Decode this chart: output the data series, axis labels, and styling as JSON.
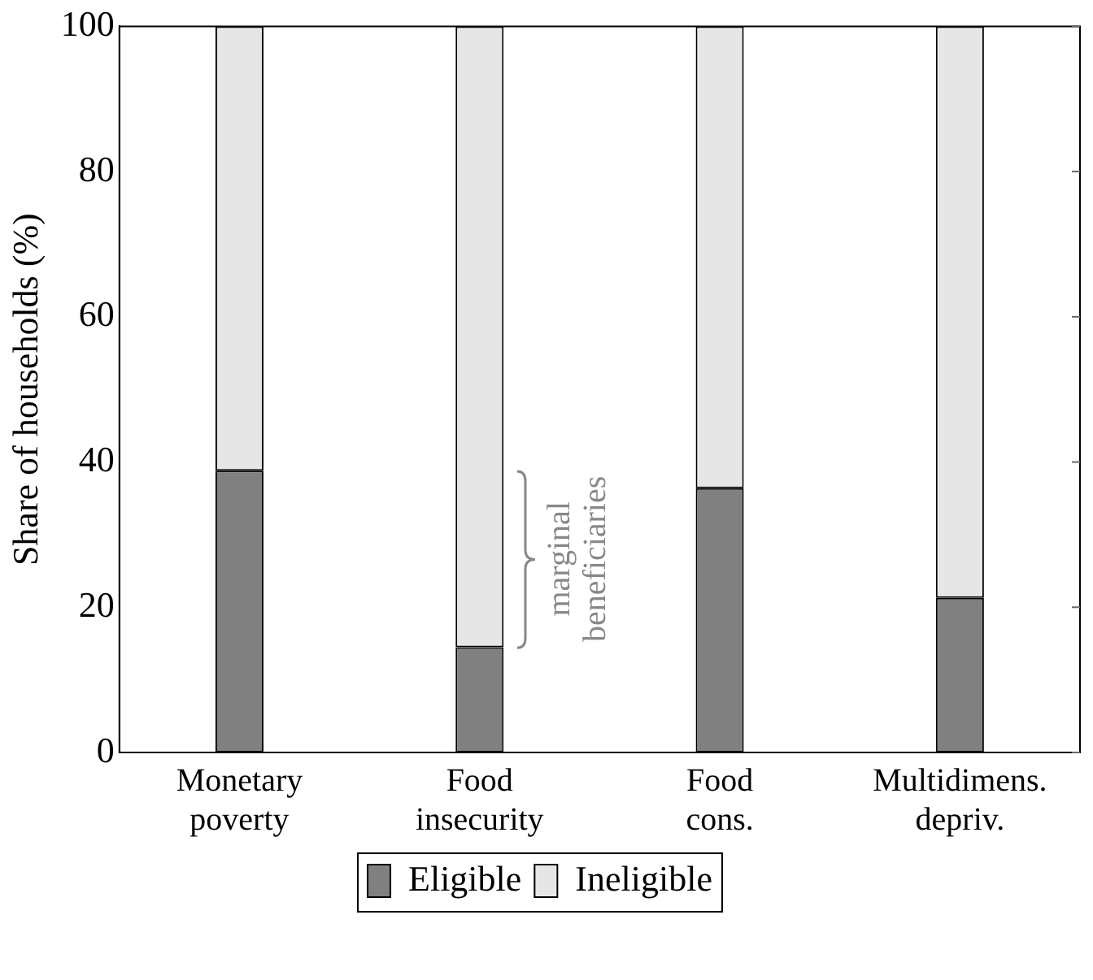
{
  "chart_data": {
    "type": "bar",
    "stacked": true,
    "ylabel": "Share of households (%)",
    "categories": [
      "Monetary\npoverty",
      "Food\ninsecurity",
      "Food\ncons.",
      "Multidimens.\ndepriv."
    ],
    "series": [
      {
        "name": "Eligible",
        "color": "#808080",
        "values": [
          38.8,
          14.5,
          36.4,
          21.3
        ]
      },
      {
        "name": "Ineligible",
        "color": "#e6e6e6",
        "values": [
          61.2,
          85.5,
          63.6,
          78.7
        ]
      }
    ],
    "ylim": [
      0,
      100
    ],
    "yticks": [
      0,
      20,
      40,
      60,
      80,
      100
    ],
    "grid": false,
    "legend": "bottom",
    "annotations": [
      "marginal\nbeneficiaries"
    ]
  }
}
